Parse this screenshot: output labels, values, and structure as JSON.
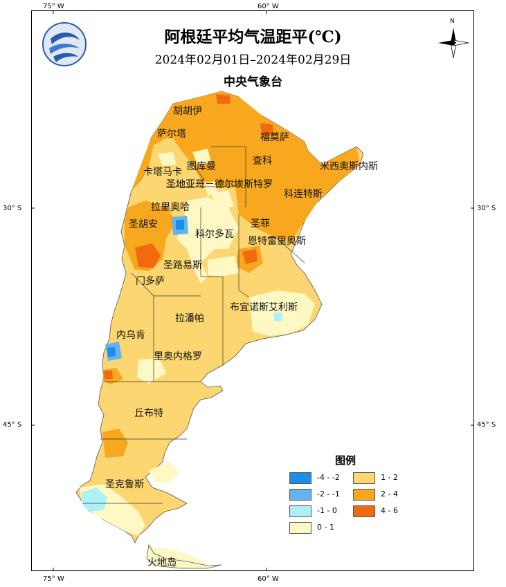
{
  "header": {
    "title": "阿根廷平均气温距平(℃)",
    "date_range": "2024年02月01日–2024年02月29日",
    "agency": "中央气象台"
  },
  "axes": {
    "top_ticks": [
      "75° W",
      "60° W"
    ],
    "bottom_ticks": [
      "75° W",
      "60° W"
    ],
    "left_ticks": [
      "30° S",
      "45° S"
    ],
    "right_ticks": [
      "30° S",
      "45° S"
    ]
  },
  "compass": {
    "north_label": "N"
  },
  "regions": [
    {
      "id": "jujuy",
      "name": "胡胡伊"
    },
    {
      "id": "salta",
      "name": "萨尔塔"
    },
    {
      "id": "formosa",
      "name": "福莫萨"
    },
    {
      "id": "chaco",
      "name": "查科"
    },
    {
      "id": "tucuman",
      "name": "图库曼"
    },
    {
      "id": "catamarca",
      "name": "卡塔马卡"
    },
    {
      "id": "misiones",
      "name": "米西奥斯内斯"
    },
    {
      "id": "santiago",
      "name": "圣地亚哥－德尔埃斯特罗"
    },
    {
      "id": "corrientes",
      "name": "科连特斯"
    },
    {
      "id": "larioja",
      "name": "拉里奥哈"
    },
    {
      "id": "sanjuan",
      "name": "圣胡安"
    },
    {
      "id": "santafe",
      "name": "圣菲"
    },
    {
      "id": "cordoba",
      "name": "科尔多瓦"
    },
    {
      "id": "entrerios",
      "name": "恩特雷里奥斯"
    },
    {
      "id": "sanluis",
      "name": "圣路易斯"
    },
    {
      "id": "mendoza",
      "name": "门多萨"
    },
    {
      "id": "buenosaires",
      "name": "布宜诺斯艾利斯"
    },
    {
      "id": "lapampa",
      "name": "拉潘帕"
    },
    {
      "id": "neuquen",
      "name": "内乌肯"
    },
    {
      "id": "rionegro",
      "name": "里奥内格罗"
    },
    {
      "id": "chubut",
      "name": "丘布特"
    },
    {
      "id": "santacruz",
      "name": "圣克鲁斯"
    },
    {
      "id": "tierradelfuego",
      "name": "火地岛"
    }
  ],
  "legend": {
    "title": "图例",
    "items": [
      {
        "range": "-4 - -2",
        "color": "#1a8fe8"
      },
      {
        "range": "-2 - -1",
        "color": "#63b3f0"
      },
      {
        "range": "-1 - 0",
        "color": "#aef0f5"
      },
      {
        "range": "0 - 1",
        "color": "#fdf8c4"
      },
      {
        "range": "1 - 2",
        "color": "#fcd670"
      },
      {
        "range": "2 - 4",
        "color": "#f7a81e"
      },
      {
        "range": "4 - 6",
        "color": "#f26a0f"
      }
    ]
  }
}
